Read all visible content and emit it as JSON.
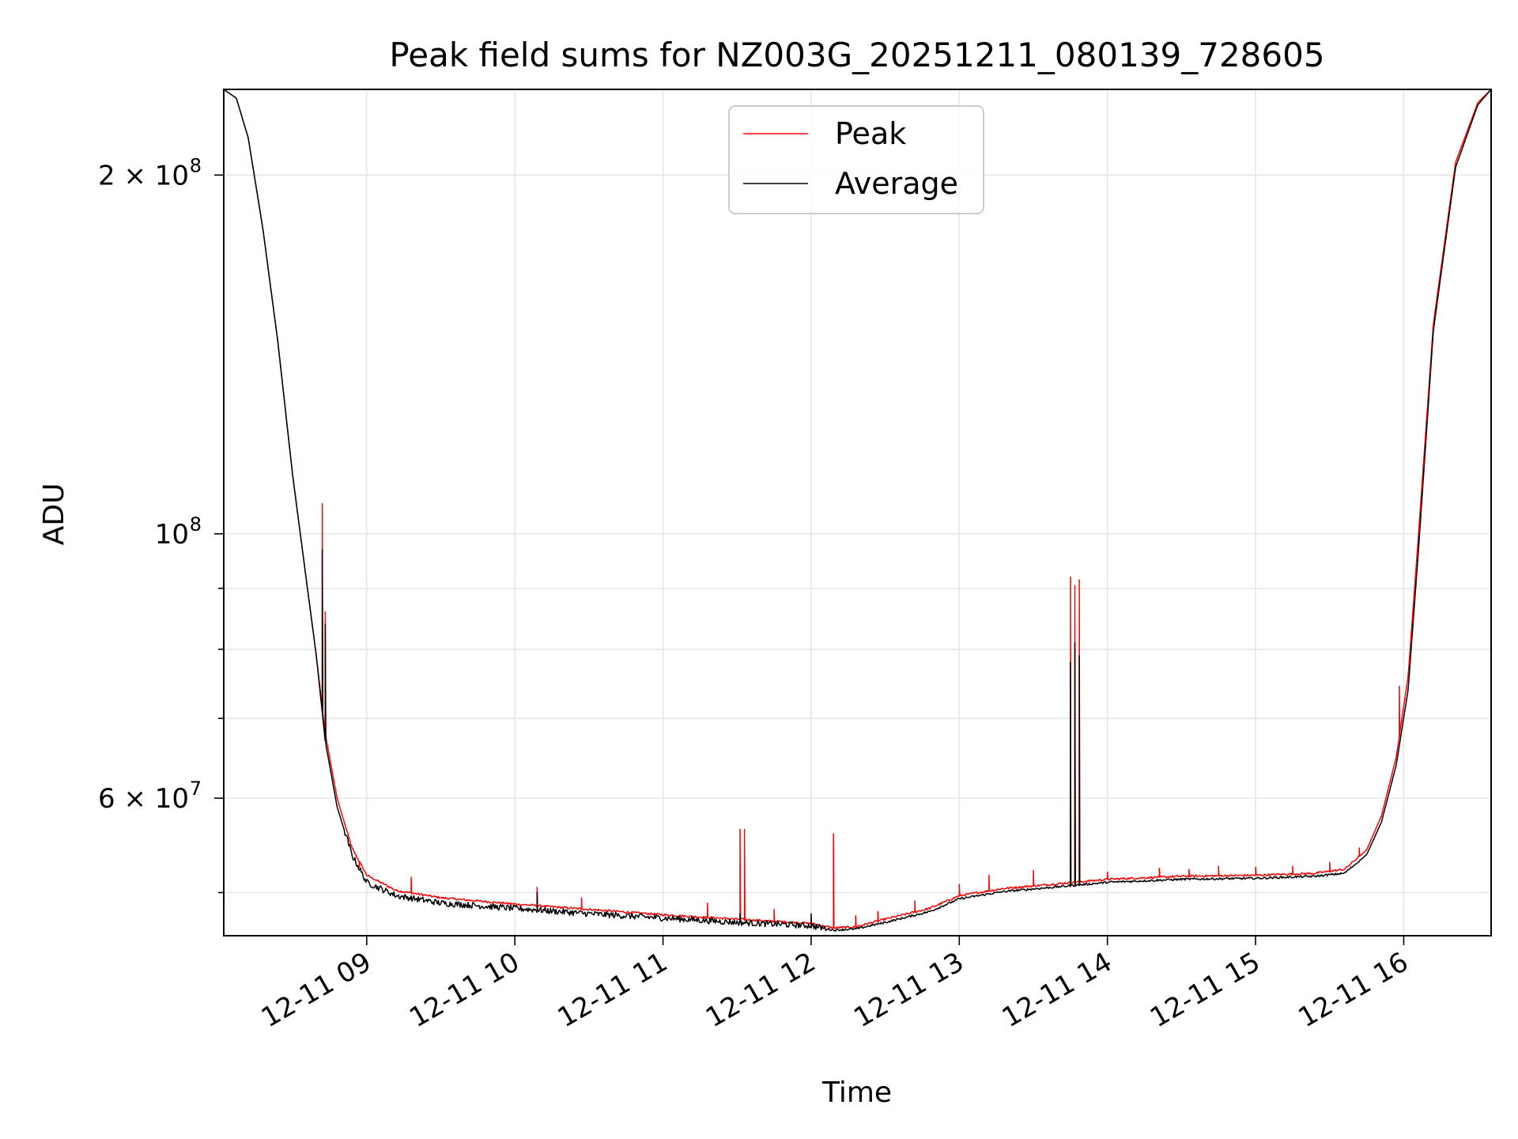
{
  "chart_data": {
    "type": "line",
    "title": "Peak field sums for NZ003G_20251211_080139_728605",
    "xlabel": "Time",
    "ylabel": "ADU",
    "y_scale": "log",
    "x_unit": "hour of 2025-12-11",
    "xlim": [
      8.035,
      16.59
    ],
    "ylim": [
      46000000,
      236000000
    ],
    "x_ticks": [
      {
        "value": 9,
        "label": "12-11 09"
      },
      {
        "value": 10,
        "label": "12-11 10"
      },
      {
        "value": 11,
        "label": "12-11 11"
      },
      {
        "value": 12,
        "label": "12-11 12"
      },
      {
        "value": 13,
        "label": "12-11 13"
      },
      {
        "value": 14,
        "label": "12-11 14"
      },
      {
        "value": 15,
        "label": "12-11 15"
      },
      {
        "value": 16,
        "label": "12-11 16"
      }
    ],
    "y_major_ticks": [
      {
        "value": 60000000,
        "mantissa": "6",
        "exponent": "7"
      },
      {
        "value": 100000000,
        "mantissa": "",
        "exponent": "8"
      },
      {
        "value": 200000000,
        "mantissa": "2",
        "exponent": "8"
      }
    ],
    "y_minor_ticks": [
      50000000,
      70000000,
      80000000,
      90000000
    ],
    "grid": true,
    "legend_position": "top-center",
    "series": [
      {
        "name": "Peak",
        "color": "#ff0000",
        "base": [
          [
            8.035,
            236000000
          ],
          [
            8.12,
            232000000
          ],
          [
            8.2,
            215000000
          ],
          [
            8.3,
            180000000
          ],
          [
            8.4,
            145000000
          ],
          [
            8.5,
            112000000
          ],
          [
            8.6,
            90000000
          ],
          [
            8.66,
            79000000
          ],
          [
            8.72,
            68000000
          ],
          [
            8.8,
            60000000
          ],
          [
            8.9,
            54500000
          ],
          [
            9.0,
            51700000
          ],
          [
            9.2,
            50200000
          ],
          [
            9.5,
            49500000
          ],
          [
            10.0,
            48900000
          ],
          [
            10.5,
            48400000
          ],
          [
            11.0,
            47900000
          ],
          [
            11.5,
            47500000
          ],
          [
            12.0,
            47100000
          ],
          [
            12.15,
            46700000
          ],
          [
            12.3,
            46800000
          ],
          [
            12.5,
            47500000
          ],
          [
            12.8,
            48500000
          ],
          [
            13.0,
            49700000
          ],
          [
            13.3,
            50400000
          ],
          [
            13.7,
            50900000
          ],
          [
            14.0,
            51300000
          ],
          [
            14.5,
            51600000
          ],
          [
            15.0,
            51700000
          ],
          [
            15.4,
            51900000
          ],
          [
            15.6,
            52300000
          ],
          [
            15.75,
            54300000
          ],
          [
            15.85,
            58000000
          ],
          [
            15.95,
            65000000
          ],
          [
            16.03,
            76000000
          ],
          [
            16.1,
            100000000
          ],
          [
            16.2,
            150000000
          ],
          [
            16.35,
            205000000
          ],
          [
            16.5,
            230000000
          ],
          [
            16.59,
            236000000
          ]
        ],
        "spikes": [
          [
            8.7,
            106000000
          ],
          [
            8.72,
            86000000
          ],
          [
            8.95,
            52500000
          ],
          [
            9.3,
            51500000
          ],
          [
            10.15,
            50500000
          ],
          [
            10.45,
            49500000
          ],
          [
            11.3,
            49000000
          ],
          [
            11.52,
            56500000
          ],
          [
            11.55,
            56500000
          ],
          [
            11.75,
            48400000
          ],
          [
            12.15,
            56000000
          ],
          [
            12.3,
            47800000
          ],
          [
            12.45,
            48200000
          ],
          [
            12.7,
            49200000
          ],
          [
            13.0,
            50800000
          ],
          [
            13.2,
            51700000
          ],
          [
            13.5,
            52200000
          ],
          [
            13.75,
            92000000
          ],
          [
            13.78,
            90500000
          ],
          [
            13.81,
            91500000
          ],
          [
            14.0,
            52000000
          ],
          [
            14.35,
            52400000
          ],
          [
            14.55,
            52300000
          ],
          [
            14.75,
            52600000
          ],
          [
            15.0,
            52500000
          ],
          [
            15.25,
            52600000
          ],
          [
            15.5,
            53000000
          ],
          [
            15.7,
            54500000
          ],
          [
            15.97,
            74500000
          ]
        ]
      },
      {
        "name": "Average",
        "color": "#000000",
        "base": [
          [
            8.035,
            236000000
          ],
          [
            8.12,
            232000000
          ],
          [
            8.2,
            215000000
          ],
          [
            8.3,
            180000000
          ],
          [
            8.4,
            145000000
          ],
          [
            8.5,
            112000000
          ],
          [
            8.6,
            90000000
          ],
          [
            8.66,
            79000000
          ],
          [
            8.72,
            67000000
          ],
          [
            8.8,
            59000000
          ],
          [
            8.9,
            53800000
          ],
          [
            9.0,
            51000000
          ],
          [
            9.2,
            49700000
          ],
          [
            9.5,
            49000000
          ],
          [
            10.0,
            48500000
          ],
          [
            10.5,
            48000000
          ],
          [
            11.0,
            47600000
          ],
          [
            11.5,
            47200000
          ],
          [
            12.0,
            46900000
          ],
          [
            12.15,
            46500000
          ],
          [
            12.3,
            46600000
          ],
          [
            12.5,
            47200000
          ],
          [
            12.8,
            48200000
          ],
          [
            13.0,
            49400000
          ],
          [
            13.3,
            50100000
          ],
          [
            13.7,
            50600000
          ],
          [
            14.0,
            51000000
          ],
          [
            14.5,
            51300000
          ],
          [
            15.0,
            51400000
          ],
          [
            15.4,
            51600000
          ],
          [
            15.6,
            51900000
          ],
          [
            15.75,
            53800000
          ],
          [
            15.85,
            57300000
          ],
          [
            15.95,
            64000000
          ],
          [
            16.03,
            74000000
          ],
          [
            16.1,
            97000000
          ],
          [
            16.2,
            148000000
          ],
          [
            16.35,
            203000000
          ],
          [
            16.5,
            229000000
          ],
          [
            16.59,
            236000000
          ]
        ],
        "spikes": [
          [
            8.7,
            97000000
          ],
          [
            8.72,
            84000000
          ],
          [
            10.15,
            50000000
          ],
          [
            11.52,
            48000000
          ],
          [
            12.0,
            48000000
          ],
          [
            13.75,
            78000000
          ],
          [
            13.78,
            81000000
          ],
          [
            13.81,
            79000000
          ]
        ]
      }
    ]
  }
}
